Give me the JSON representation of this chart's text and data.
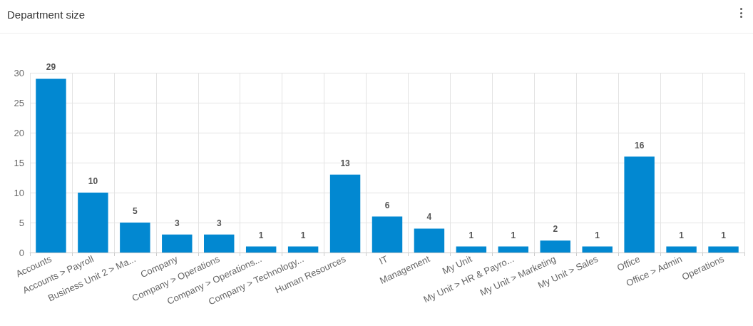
{
  "chart_data": {
    "type": "bar",
    "title": "Department size",
    "categories": [
      "Accounts",
      "Accounts > Payroll",
      "Business Unit 2 > Ma...",
      "Company",
      "Company > Operations",
      "Company > Operations...",
      "Company > Technology...",
      "Human Resources",
      "IT",
      "Management",
      "My Unit",
      "My Unit > HR & Payro...",
      "My Unit > Marketing",
      "My Unit > Sales",
      "Office",
      "Office > Admin",
      "Operations"
    ],
    "values": [
      29,
      10,
      5,
      3,
      3,
      1,
      1,
      13,
      6,
      4,
      1,
      1,
      2,
      1,
      16,
      1,
      1
    ],
    "color": "#0288d1",
    "ylim": [
      0,
      30
    ],
    "yticks": [
      0,
      5,
      10,
      15,
      20,
      25,
      30
    ],
    "grid": true,
    "data_labels": true
  }
}
